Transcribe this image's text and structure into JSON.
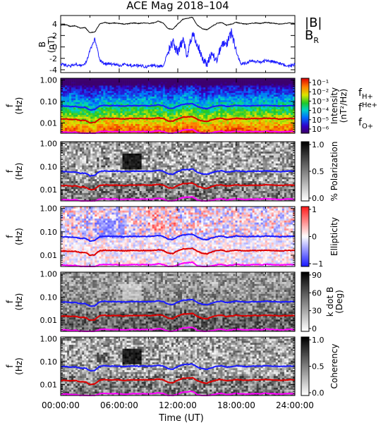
{
  "title": "ACE Mag 2018–104",
  "colors": {
    "b_total": "#000000",
    "b_r": "#1a1aff",
    "h_plus": "#1a1aff",
    "he_plus": "#dd0000",
    "o_plus": "#ff00ff"
  },
  "top_panel": {
    "ylabel": "B\n(nT)",
    "yticks": [
      "4",
      "2",
      "0",
      "-2",
      "-4"
    ],
    "ylim": [
      -4.5,
      5.5
    ],
    "legend": [
      {
        "label": "|B|",
        "color": "#000000"
      },
      {
        "label": "B",
        "sub": "R",
        "color": "#1a1aff"
      }
    ]
  },
  "freq_axis": {
    "ylabel": "f\n(Hz)",
    "ticks": [
      "1.00",
      "0.10",
      "0.01"
    ],
    "ylim_hz": [
      0.0033,
      1.2
    ],
    "log": true
  },
  "xaxis": {
    "label": "Time (UT)",
    "ticks": [
      "00:00:00",
      "06:00:00",
      "12:00:00",
      "18:00:00",
      "24:00:00"
    ],
    "range_hours": [
      0,
      24
    ]
  },
  "panels": [
    {
      "id": "intensity",
      "colormap": "rainbow",
      "cbar_label": "Intensity\n(nT²/Hz)",
      "cbar_ticks": [
        "10⁻¹",
        "10⁻²",
        "10⁻³",
        "10⁻⁴",
        "10⁻⁵",
        "10⁻⁶"
      ],
      "legend": [
        {
          "label": "f",
          "sub": "H+",
          "color": "#1a1aff"
        },
        {
          "label": "f",
          "sub": "He+",
          "color": "#dd0000"
        },
        {
          "label": "f",
          "sub": "O+",
          "color": "#ff00ff"
        }
      ]
    },
    {
      "id": "polarization",
      "colormap": "gray",
      "cbar_label": "% Polarization",
      "cbar_ticks": [
        "1.0",
        "0.5",
        "0.0"
      ]
    },
    {
      "id": "ellipticity",
      "colormap": "bwr",
      "cbar_label": "Ellipticity",
      "cbar_ticks": [
        "1",
        "0",
        "−1"
      ]
    },
    {
      "id": "kdotb",
      "colormap": "gray",
      "cbar_label": "k dot B\n(Deg)",
      "cbar_ticks": [
        "90",
        "60",
        "30",
        "0"
      ]
    },
    {
      "id": "coherency",
      "colormap": "gray",
      "cbar_label": "Coherency",
      "cbar_ticks": [
        "1.0",
        "0.5",
        "0.0"
      ]
    }
  ],
  "chart_data": [
    {
      "type": "line",
      "title": "ACE Mag 2018–104",
      "xlabel": "Time (UT)",
      "ylabel": "B (nT)",
      "xlim": [
        0,
        24
      ],
      "ylim": [
        -4.5,
        5.5
      ],
      "x_hours": [
        0,
        0.5,
        1,
        1.5,
        2,
        2.5,
        3,
        3.5,
        4,
        4.5,
        5,
        5.5,
        6,
        6.5,
        7,
        7.5,
        8,
        8.5,
        9,
        9.5,
        10,
        10.5,
        11,
        11.5,
        12,
        12.5,
        13,
        13.5,
        14,
        14.5,
        15,
        15.5,
        16,
        16.5,
        17,
        17.5,
        18,
        18.5,
        19,
        19.5,
        20,
        20.5,
        21,
        21.5,
        22,
        22.5,
        23,
        23.5,
        24
      ],
      "series": [
        {
          "name": "|B|",
          "values": [
            3.8,
            3.9,
            3.6,
            3.7,
            3.3,
            3.4,
            2.5,
            2.6,
            4.0,
            4.3,
            4.1,
            4.2,
            4.1,
            4.0,
            4.1,
            4.2,
            4.1,
            4.2,
            4.1,
            4.2,
            4.5,
            4.2,
            3.2,
            3.1,
            4.0,
            4.8,
            5.0,
            5.2,
            3.8,
            3.2,
            3.0,
            3.6,
            4.1,
            4.3,
            3.8,
            4.0,
            4.3,
            4.1,
            4.0,
            4.1,
            4.2,
            4.1,
            4.3,
            4.2,
            4.1,
            4.0,
            4.1,
            4.2,
            4.1
          ]
        },
        {
          "name": "Bᵣ",
          "values": [
            -3.1,
            -3.2,
            -3.3,
            -3.0,
            -3.2,
            -3.1,
            -0.7,
            1.5,
            -2.3,
            -3.0,
            -2.9,
            -3.1,
            -3.2,
            -3.1,
            -3.3,
            -3.2,
            -3.3,
            -3.4,
            -3.5,
            -3.1,
            -3.4,
            -3.3,
            -1.0,
            0.8,
            -1.0,
            1.2,
            -1.5,
            2.5,
            0.5,
            -2.0,
            -3.2,
            -1.0,
            -2.5,
            0.8,
            0.5,
            2.5,
            -1.0,
            -3.0,
            -2.8,
            -2.4,
            -2.5,
            -2.6,
            -2.4,
            -2.5,
            -2.7,
            -2.9,
            -3.1,
            -3.3,
            -3.1
          ]
        }
      ]
    },
    {
      "type": "heatmap",
      "title": "",
      "xlabel": "Time (UT)",
      "ylabel": "f (Hz)",
      "yscale": "log",
      "xlim": [
        0,
        24
      ],
      "ylim": [
        0.0033,
        1.2
      ],
      "overlay_x_hours": [
        0,
        0.5,
        1,
        1.5,
        2,
        2.5,
        3,
        3.5,
        4,
        4.5,
        5,
        5.5,
        6,
        6.5,
        7,
        7.5,
        8,
        8.5,
        9,
        9.5,
        10,
        10.5,
        11,
        11.5,
        12,
        12.5,
        13,
        13.5,
        14,
        14.5,
        15,
        15.5,
        16,
        16.5,
        17,
        17.5,
        18,
        18.5,
        19,
        19.5,
        20,
        20.5,
        21,
        21.5,
        22,
        22.5,
        23,
        23.5,
        24
      ],
      "overlay_series": [
        {
          "name": "f H+",
          "values": [
            0.06,
            0.061,
            0.058,
            0.059,
            0.052,
            0.053,
            0.04,
            0.042,
            0.062,
            0.066,
            0.063,
            0.064,
            0.063,
            0.061,
            0.063,
            0.064,
            0.063,
            0.064,
            0.063,
            0.064,
            0.069,
            0.064,
            0.049,
            0.047,
            0.061,
            0.073,
            0.076,
            0.079,
            0.058,
            0.049,
            0.046,
            0.055,
            0.063,
            0.066,
            0.058,
            0.061,
            0.066,
            0.063,
            0.061,
            0.063,
            0.064,
            0.063,
            0.066,
            0.064,
            0.063,
            0.061,
            0.063,
            0.064,
            0.063
          ]
        },
        {
          "name": "f He+",
          "values": [
            0.015,
            0.0152,
            0.0145,
            0.0148,
            0.013,
            0.0133,
            0.01,
            0.0105,
            0.0155,
            0.0165,
            0.0158,
            0.016,
            0.0158,
            0.0153,
            0.0158,
            0.016,
            0.0158,
            0.016,
            0.0158,
            0.016,
            0.0172,
            0.016,
            0.0122,
            0.0118,
            0.0153,
            0.0183,
            0.019,
            0.0198,
            0.0145,
            0.0122,
            0.0115,
            0.0138,
            0.0158,
            0.0165,
            0.0145,
            0.0153,
            0.0165,
            0.0158,
            0.0153,
            0.0158,
            0.016,
            0.0158,
            0.0165,
            0.016,
            0.0158,
            0.0153,
            0.0158,
            0.016,
            0.0158
          ]
        },
        {
          "name": "f O+",
          "values": [
            0.0038,
            0.0038,
            0.0036,
            0.0037,
            0.0033,
            0.0033,
            0.0033,
            0.0033,
            0.0039,
            0.0041,
            0.0039,
            0.004,
            0.0039,
            0.0038,
            0.0039,
            0.004,
            0.0039,
            0.004,
            0.0039,
            0.004,
            0.0043,
            0.004,
            0.0033,
            0.0033,
            0.0038,
            0.0046,
            0.0048,
            0.005,
            0.0036,
            0.0033,
            0.0033,
            0.0035,
            0.0039,
            0.0041,
            0.0036,
            0.0038,
            0.0041,
            0.0039,
            0.0038,
            0.0039,
            0.004,
            0.0039,
            0.0041,
            0.004,
            0.0039,
            0.0038,
            0.0039,
            0.004,
            0.0039
          ]
        }
      ]
    }
  ]
}
